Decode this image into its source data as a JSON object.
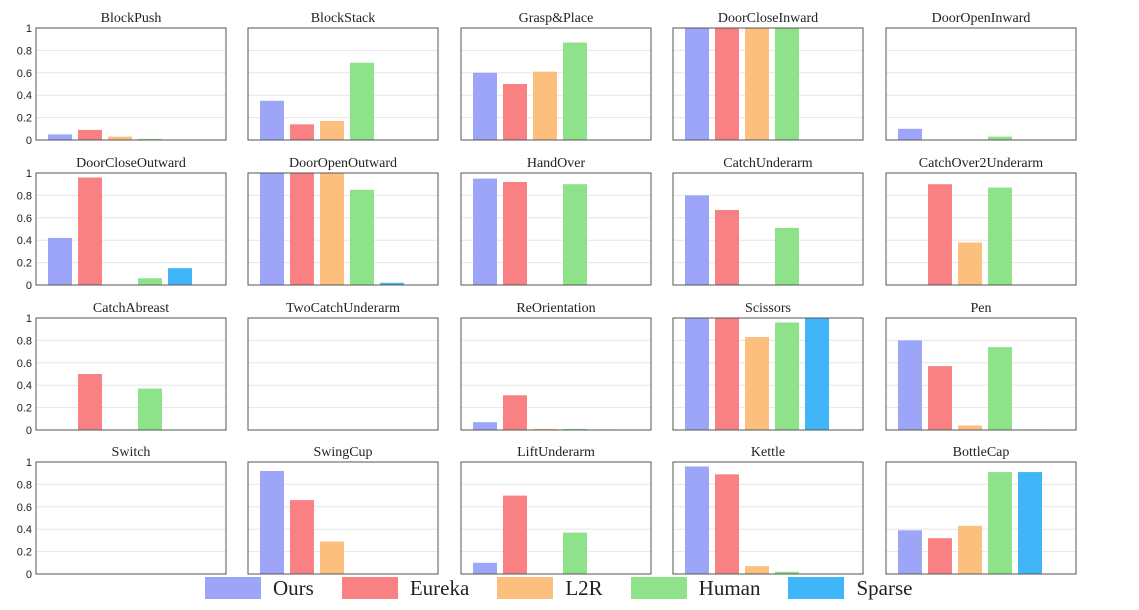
{
  "colors": {
    "Ours": "#9da5f8",
    "Eureka": "#f98183",
    "L2R": "#fdbf7d",
    "Human": "#8ee28a",
    "Sparse": "#40b5f8"
  },
  "legend": {
    "series": [
      "Ours",
      "Eureka",
      "L2R",
      "Human",
      "Sparse"
    ]
  },
  "chart_data": {
    "type": "bar",
    "ylim": [
      0,
      1
    ],
    "yticks": [
      "0",
      "0.2",
      "0.4",
      "0.6",
      "0.8",
      "1"
    ],
    "yticks_values": [
      0,
      0.2,
      0.4,
      0.6,
      0.8,
      1.0
    ],
    "grid": true,
    "legend_placement": "bottom",
    "series_names": [
      "Ours",
      "Eureka",
      "L2R",
      "Human",
      "Sparse"
    ],
    "panels": [
      {
        "title": "BlockPush",
        "values": [
          0.05,
          0.09,
          0.03,
          0.01,
          0.0
        ]
      },
      {
        "title": "BlockStack",
        "values": [
          0.35,
          0.14,
          0.17,
          0.69,
          0.0
        ]
      },
      {
        "title": "Grasp&Place",
        "values": [
          0.6,
          0.5,
          0.61,
          0.87,
          0.0
        ]
      },
      {
        "title": "DoorCloseInward",
        "values": [
          1.0,
          1.0,
          1.0,
          1.0,
          0.0
        ]
      },
      {
        "title": "DoorOpenInward",
        "values": [
          0.1,
          0.0,
          0.0,
          0.03,
          0.0
        ]
      },
      {
        "title": "DoorCloseOutward",
        "values": [
          0.42,
          0.96,
          0.0,
          0.06,
          0.15
        ]
      },
      {
        "title": "DoorOpenOutward",
        "values": [
          1.0,
          1.0,
          1.0,
          0.85,
          0.02
        ]
      },
      {
        "title": "HandOver",
        "values": [
          0.95,
          0.92,
          0.0,
          0.9,
          0.0
        ]
      },
      {
        "title": "CatchUnderarm",
        "values": [
          0.8,
          0.67,
          0.0,
          0.51,
          0.0
        ]
      },
      {
        "title": "CatchOver2Underarm",
        "values": [
          0.0,
          0.9,
          0.38,
          0.87,
          0.0
        ]
      },
      {
        "title": "CatchAbreast",
        "values": [
          0.0,
          0.5,
          0.0,
          0.37,
          0.0
        ]
      },
      {
        "title": "TwoCatchUnderarm",
        "values": [
          0.0,
          0.0,
          0.0,
          0.0,
          0.0
        ]
      },
      {
        "title": "ReOrientation",
        "values": [
          0.07,
          0.31,
          0.01,
          0.01,
          0.005
        ]
      },
      {
        "title": "Scissors",
        "values": [
          1.0,
          1.0,
          0.83,
          0.96,
          1.0
        ]
      },
      {
        "title": "Pen",
        "values": [
          0.8,
          0.57,
          0.04,
          0.74,
          0.005
        ]
      },
      {
        "title": "Switch",
        "values": [
          0.0,
          0.0,
          0.0,
          0.0,
          0.0
        ]
      },
      {
        "title": "SwingCup",
        "values": [
          0.92,
          0.66,
          0.29,
          0.0,
          0.0
        ]
      },
      {
        "title": "LiftUnderarm",
        "values": [
          0.1,
          0.7,
          0.0,
          0.37,
          0.0
        ]
      },
      {
        "title": "Kettle",
        "values": [
          0.96,
          0.89,
          0.07,
          0.02,
          0.0
        ]
      },
      {
        "title": "BottleCap",
        "values": [
          0.39,
          0.32,
          0.43,
          0.91,
          0.91
        ]
      }
    ]
  }
}
